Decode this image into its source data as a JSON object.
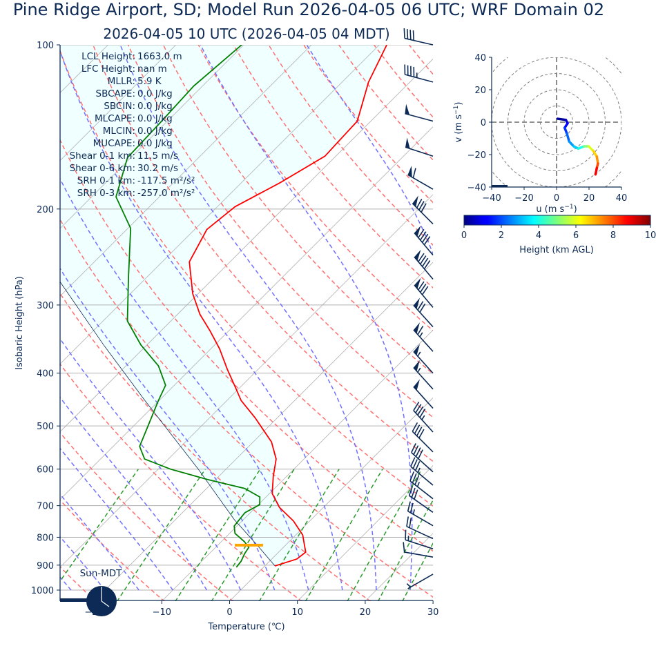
{
  "header": {
    "title": "Pine Ridge Airport, SD; Model Run 2026-04-05 06 UTC; WRF Domain 02",
    "subtitle": "2026-04-05 10 UTC  (2026-04-05 04 MDT)"
  },
  "stats": [
    {
      "label": "LCL Height:",
      "value": "1663.0 m"
    },
    {
      "label": "LFC Height:",
      "value": "nan m"
    },
    {
      "label": "MLLR:",
      "value": "5.9 K"
    },
    {
      "label": "SBCAPE:",
      "value": "0.0 J/kg"
    },
    {
      "label": "SBCIN:",
      "value": "0.0 J/kg"
    },
    {
      "label": "MLCAPE:",
      "value": "0.0 J/kg"
    },
    {
      "label": "MLCIN:",
      "value": "0.0 J/kg"
    },
    {
      "label": "MUCAPE:",
      "value": "0.0 J/kg"
    },
    {
      "label": "Shear 0-1 km:",
      "value": "11.5 m/s"
    },
    {
      "label": "Shear 0-6 km:",
      "value": "30.2 m/s"
    },
    {
      "label": "SRH 0-1 km:",
      "value": "-117.5 m²/s²"
    },
    {
      "label": "SRH 0-3 km:",
      "value": "-257.0 m²/s²"
    }
  ],
  "clock": {
    "label": "Sun-MDT",
    "icon": "clock-icon"
  },
  "colors": {
    "text": "#0c2a55",
    "temperature": "#ff0000",
    "dewpoint": "#008000",
    "parcel": "#0c2a55",
    "cin_fill": "#f0ffff",
    "lcl_marker": "#ffa500",
    "dry_adiabat": "#ff7070",
    "moist_adiabat": "#7070ff",
    "mixing_ratio": "#2a9a2a",
    "grid": "#b0b0b0"
  },
  "chart_data": [
    {
      "type": "line",
      "subtype": "skew-T log-p",
      "xlabel": "Temperature (℃)",
      "ylabel": "Isobaric Height (hPa)",
      "xlim": [
        -25,
        30
      ],
      "ylim": [
        1050,
        100
      ],
      "y_scale": "log",
      "grid": true,
      "xticks": [
        -20,
        -10,
        0,
        10,
        20,
        30
      ],
      "xtick_labels": [
        "−20",
        "−10",
        "0",
        "10",
        "20",
        "30"
      ],
      "yticks": [
        100,
        200,
        300,
        400,
        500,
        600,
        700,
        800,
        900,
        1000
      ],
      "yticks_labels": [
        "100",
        "200",
        "300",
        "400",
        "500",
        "600",
        "700",
        "800",
        "900",
        "1000"
      ],
      "temperature": {
        "pressure_hPa": [
          903,
          877,
          852,
          792,
          747,
          705,
          665,
          618,
          575,
          535,
          483,
          449,
          423,
          394,
          361,
          335,
          312,
          286,
          250,
          218,
          198,
          179,
          160,
          138,
          117,
          100
        ],
        "temperature_C": [
          1.5,
          3.7,
          4.0,
          1.0,
          -2.4,
          -6.5,
          -9.6,
          -12.0,
          -14.1,
          -17.3,
          -23.3,
          -27.9,
          -30.9,
          -34.5,
          -38.7,
          -42.7,
          -46.7,
          -50.8,
          -56.0,
          -58.2,
          -57.4,
          -54.3,
          -51.6,
          -52.0,
          -56.1,
          -58.9
        ]
      },
      "dewpoint": {
        "pressure_hPa": [
          908,
          885,
          857,
          835,
          815,
          787,
          763,
          721,
          697,
          675,
          651,
          627,
          600,
          575,
          545,
          497,
          449,
          421,
          388,
          355,
          321,
          266,
          217,
          190,
          161,
          140,
          119,
          100
        ],
        "dewpoint_C": [
          -4.0,
          -4.2,
          -4.8,
          -5.1,
          -6.6,
          -9.2,
          -10.4,
          -10.8,
          -9.8,
          -10.9,
          -14.4,
          -21.2,
          -28.2,
          -33.5,
          -36.1,
          -38.0,
          -40.1,
          -41.3,
          -45.2,
          -50.9,
          -56.4,
          -62.8,
          -69.6,
          -76.4,
          -80.5,
          -80.8,
          -81.3,
          -80.3
        ]
      },
      "parcel_path": {
        "pressure_hPa": [
          903,
          827,
          743,
          600,
          449,
          355,
          273
        ],
        "temperature_C": [
          1.5,
          -4.2,
          -11.3,
          -24.1,
          -42.1,
          -56.4,
          -71.9
        ]
      },
      "lcl_pressure_hPa": 827,
      "wind_barbs": [
        {
          "p": 100,
          "speed_kt": 40,
          "dir_deg": 283
        },
        {
          "p": 117,
          "speed_kt": 45,
          "dir_deg": 285
        },
        {
          "p": 138,
          "speed_kt": 50,
          "dir_deg": 285
        },
        {
          "p": 160,
          "speed_kt": 50,
          "dir_deg": 288
        },
        {
          "p": 184,
          "speed_kt": 60,
          "dir_deg": 300
        },
        {
          "p": 213,
          "speed_kt": 80,
          "dir_deg": 315
        },
        {
          "p": 243,
          "speed_kt": 90,
          "dir_deg": 320
        },
        {
          "p": 269,
          "speed_kt": 90,
          "dir_deg": 320
        },
        {
          "p": 303,
          "speed_kt": 80,
          "dir_deg": 320
        },
        {
          "p": 329,
          "speed_kt": 70,
          "dir_deg": 318
        },
        {
          "p": 365,
          "speed_kt": 65,
          "dir_deg": 318
        },
        {
          "p": 400,
          "speed_kt": 55,
          "dir_deg": 318
        },
        {
          "p": 428,
          "speed_kt": 55,
          "dir_deg": 318
        },
        {
          "p": 464,
          "speed_kt": 50,
          "dir_deg": 318
        },
        {
          "p": 513,
          "speed_kt": 45,
          "dir_deg": 318
        },
        {
          "p": 558,
          "speed_kt": 40,
          "dir_deg": 315
        },
        {
          "p": 607,
          "speed_kt": 40,
          "dir_deg": 312
        },
        {
          "p": 642,
          "speed_kt": 35,
          "dir_deg": 310
        },
        {
          "p": 680,
          "speed_kt": 35,
          "dir_deg": 308
        },
        {
          "p": 720,
          "speed_kt": 30,
          "dir_deg": 305
        },
        {
          "p": 762,
          "speed_kt": 25,
          "dir_deg": 300
        },
        {
          "p": 805,
          "speed_kt": 20,
          "dir_deg": 295
        },
        {
          "p": 840,
          "speed_kt": 15,
          "dir_deg": 288
        },
        {
          "p": 870,
          "speed_kt": 10,
          "dir_deg": 280
        },
        {
          "p": 935,
          "speed_kt": 5,
          "dir_deg": 240
        }
      ]
    },
    {
      "type": "line",
      "subtype": "hodograph",
      "xlabel": "u (m s",
      "xlabel_sup": "−1",
      "ylabel": "v (m s",
      "ylabel_sup": "−1",
      "xlim": [
        -40,
        40
      ],
      "ylim": [
        -40,
        40
      ],
      "xticks": [
        "−40",
        "−20",
        "0",
        "20",
        "40"
      ],
      "yticks": [
        "40",
        "20",
        "0",
        "−20",
        "−40"
      ],
      "range_rings": [
        10,
        20,
        30,
        40,
        50
      ],
      "u": [
        0.7,
        5.7,
        6.8,
        5.0,
        6.4,
        7.8,
        10.6,
        13.4,
        17.0,
        19.8,
        22.6,
        24.8,
        25.5,
        24.8,
        24.0
      ],
      "v": [
        2.1,
        1.4,
        -0.7,
        -3.5,
        -7.1,
        -12.0,
        -14.9,
        -16.3,
        -14.9,
        -14.9,
        -17.7,
        -21.2,
        -25.5,
        -28.3,
        -32.2
      ],
      "height_km": [
        0,
        0.5,
        1,
        1.5,
        2,
        2.5,
        3,
        3.5,
        4.5,
        5.5,
        6.3,
        7,
        7.6,
        8.4,
        9.2
      ],
      "colorbar": {
        "label": "Height (km AGL)",
        "colormap": "jet",
        "range": [
          0,
          10
        ],
        "ticks": [
          "0",
          "2",
          "4",
          "6",
          "8",
          "10"
        ]
      }
    }
  ]
}
